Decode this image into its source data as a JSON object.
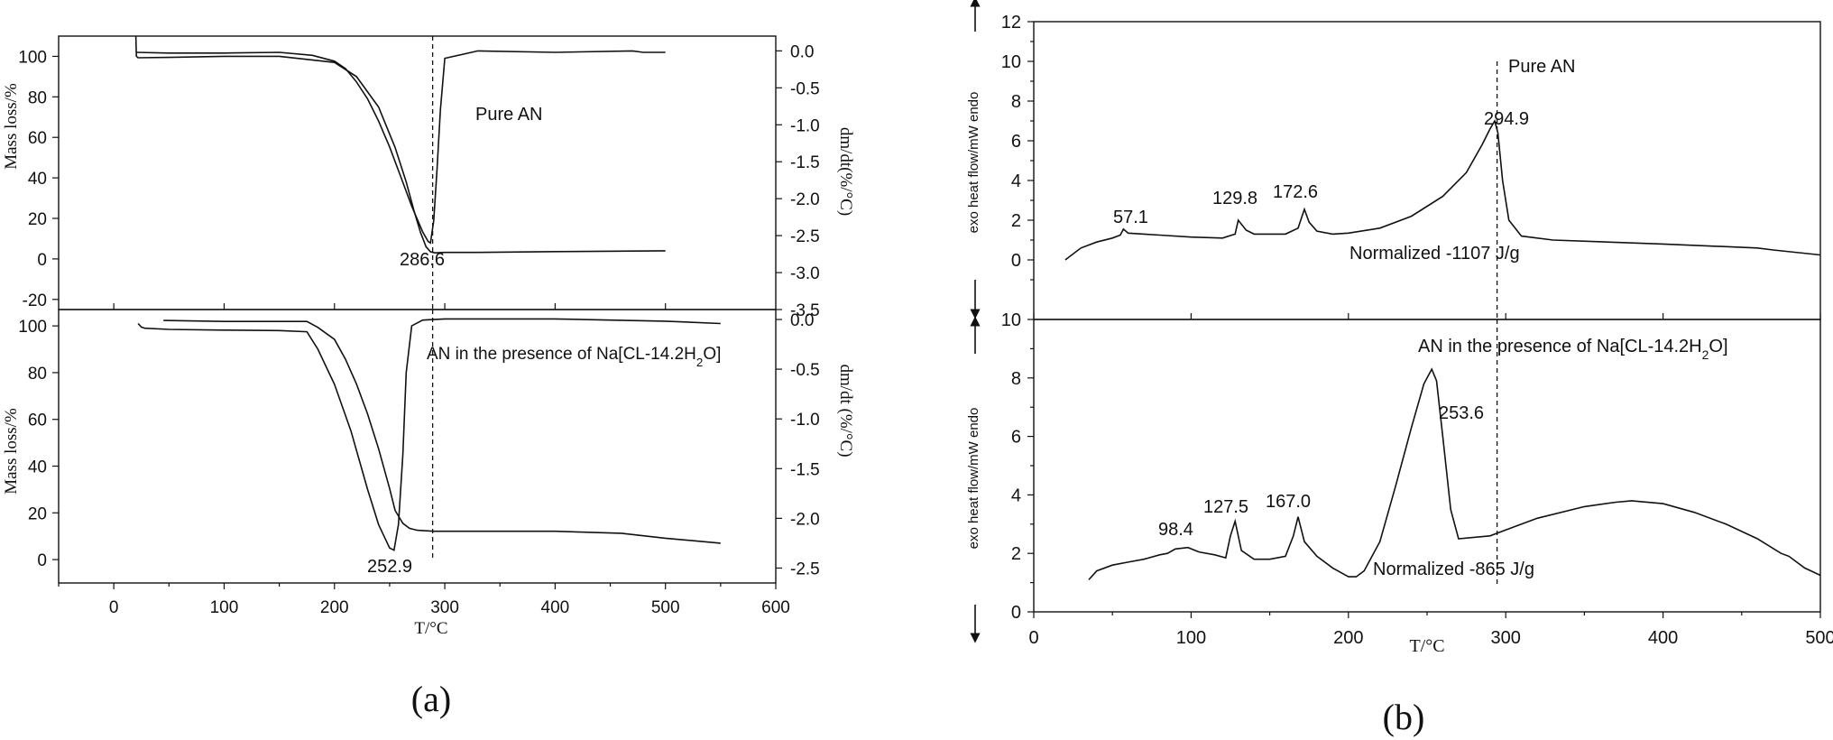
{
  "chart_data": [
    {
      "id": "a_top",
      "type": "line",
      "panel": "(a)",
      "xlim": [
        -50,
        600
      ],
      "ylim_left": [
        -25,
        110
      ],
      "ylim_right": [
        -3.5,
        0.2
      ],
      "yticks_left": [
        -20,
        0,
        20,
        40,
        60,
        80,
        100
      ],
      "yticks_right": [
        0.0,
        -0.5,
        -1.0,
        -1.5,
        -2.0,
        -2.5,
        -3.0,
        -3.5
      ],
      "ylabel_left": "Mass loss/%",
      "ylabel_right": "dm/dt(%/°C)",
      "annotations": [
        {
          "text": "Pure AN",
          "x": 475,
          "y": 75
        },
        {
          "text": "286.6",
          "x": 286.6,
          "y": -3
        }
      ],
      "marker_x": 289,
      "series": [
        {
          "axis": "left",
          "x": [
            20,
            20.5,
            22,
            50,
            100,
            150,
            200,
            220,
            240,
            255,
            265,
            272,
            278,
            283,
            287,
            291,
            300,
            330,
            400,
            500
          ],
          "y": [
            110,
            100,
            99.3,
            99.5,
            100,
            100,
            97,
            90,
            75,
            55,
            38,
            24,
            13,
            6,
            3.5,
            3,
            3.2,
            3.2,
            3.6,
            4
          ]
        },
        {
          "axis": "right",
          "x": [
            20,
            50,
            100,
            150,
            180,
            200,
            210,
            220,
            230,
            240,
            250,
            260,
            270,
            280,
            285,
            287,
            290,
            293,
            296,
            300,
            330,
            400,
            470,
            480,
            500
          ],
          "y": [
            -0.02,
            -0.03,
            -0.03,
            -0.02,
            -0.06,
            -0.14,
            -0.24,
            -0.42,
            -0.65,
            -0.95,
            -1.3,
            -1.7,
            -2.1,
            -2.45,
            -2.58,
            -2.6,
            -2.3,
            -1.6,
            -0.8,
            -0.1,
            0.0,
            -0.02,
            0.0,
            -0.02,
            -0.02
          ]
        }
      ]
    },
    {
      "id": "a_bottom",
      "type": "line",
      "panel": "(a)",
      "xlim": [
        -50,
        600
      ],
      "ylim_left": [
        -10,
        107
      ],
      "ylim_right": [
        -2.65,
        0.1
      ],
      "yticks_left": [
        0,
        20,
        40,
        60,
        80,
        100
      ],
      "yticks_right": [
        0.0,
        -0.5,
        -1.0,
        -1.5,
        -2.0,
        -2.5
      ],
      "ylabel_left": "Mass loss/%",
      "ylabel_right": "dm/dt (%/°C)",
      "xticks": [
        0,
        100,
        200,
        300,
        400,
        500,
        600
      ],
      "xlabel": "T/°C",
      "annotations": [
        {
          "text": "AN in the presence of Na[CL-14.2H2O]",
          "x": 440,
          "y": -0.45
        },
        {
          "text": "252.9",
          "x": 252.9,
          "y": -2.4
        }
      ],
      "marker_x": 289,
      "series": [
        {
          "axis": "left",
          "x": [
            22,
            25,
            28,
            50,
            100,
            150,
            175,
            185,
            200,
            215,
            230,
            240,
            250,
            254,
            258,
            262,
            265,
            270,
            280,
            300,
            350,
            400,
            450,
            500,
            550
          ],
          "y": [
            101,
            99.5,
            99,
            98.5,
            98.2,
            98,
            97.5,
            90,
            75,
            55,
            30,
            15,
            5,
            4,
            15,
            45,
            80,
            100,
            102.5,
            103,
            103,
            103,
            102.5,
            102,
            101
          ]
        },
        {
          "axis": "right",
          "x": [
            45,
            100,
            150,
            175,
            185,
            200,
            210,
            220,
            230,
            240,
            250,
            255,
            262,
            268,
            275,
            290,
            300,
            350,
            400,
            460,
            500,
            550
          ],
          "y": [
            -0.01,
            -0.02,
            -0.02,
            -0.02,
            -0.08,
            -0.2,
            -0.4,
            -0.65,
            -0.95,
            -1.3,
            -1.7,
            -1.92,
            -2.05,
            -2.1,
            -2.12,
            -2.13,
            -2.13,
            -2.13,
            -2.13,
            -2.15,
            -2.2,
            -2.25
          ]
        }
      ]
    },
    {
      "id": "b_top",
      "type": "line",
      "panel": "(b)",
      "xlim": [
        0,
        500
      ],
      "ylim": [
        -3,
        12
      ],
      "yticks": [
        0,
        2,
        4,
        6,
        8,
        10,
        12
      ],
      "ylabel": "exo heat flow/mW endo",
      "annotations": [
        {
          "text": "Pure AN",
          "x": 300,
          "y": 10
        },
        {
          "text": "294.9",
          "x": 294.9,
          "y": 6
        },
        {
          "text": "57.1",
          "x": 57.1,
          "y": 1.7
        },
        {
          "text": "129.8",
          "x": 129.8,
          "y": 2.6
        },
        {
          "text": "172.6",
          "x": 172.6,
          "y": 3.1
        },
        {
          "text": "Normalized -1107 J/g",
          "x": 270,
          "y": 0.4
        }
      ],
      "marker_x": 294.5,
      "series": [
        {
          "x": [
            20,
            30,
            40,
            50,
            55,
            57,
            60,
            70,
            80,
            100,
            120,
            128,
            130,
            135,
            140,
            160,
            168,
            172,
            175,
            180,
            190,
            200,
            220,
            240,
            260,
            275,
            285,
            290,
            293,
            295,
            298,
            302,
            310,
            330,
            400,
            460,
            470,
            500
          ],
          "y": [
            0,
            0.6,
            0.9,
            1.1,
            1.25,
            1.55,
            1.35,
            1.3,
            1.25,
            1.15,
            1.1,
            1.3,
            2.0,
            1.5,
            1.3,
            1.3,
            1.6,
            2.55,
            1.9,
            1.45,
            1.3,
            1.35,
            1.6,
            2.2,
            3.2,
            4.4,
            5.8,
            6.6,
            7.0,
            6.4,
            4.0,
            2.0,
            1.2,
            1.0,
            0.8,
            0.6,
            0.5,
            0.25
          ]
        }
      ]
    },
    {
      "id": "b_bottom",
      "type": "line",
      "panel": "(b)",
      "xlim": [
        0,
        500
      ],
      "ylim": [
        0,
        10
      ],
      "yticks": [
        0,
        2,
        4,
        6,
        8,
        10
      ],
      "xticks": [
        0,
        100,
        200,
        300,
        400,
        500
      ],
      "ylabel": "exo heat flow/mW endo",
      "xlabel": "T/°C",
      "annotations": [
        {
          "text": "AN in the presence  of Na[CL-14.2H2O]",
          "x": 400,
          "y": 9.2
        },
        {
          "text": "253.6",
          "x": 253.6,
          "y": 6.8
        },
        {
          "text": "98.4",
          "x": 98.4,
          "y": 2.6
        },
        {
          "text": "127.5",
          "x": 127.5,
          "y": 3.5
        },
        {
          "text": "167.0",
          "x": 167.0,
          "y": 3.6
        },
        {
          "text": "Normalized -865 J/g",
          "x": 255,
          "y": 1.4
        }
      ],
      "marker_x": 294.5,
      "series": [
        {
          "x": [
            35,
            40,
            50,
            60,
            70,
            80,
            85,
            90,
            98,
            105,
            115,
            122,
            125,
            128,
            132,
            140,
            150,
            160,
            165,
            168,
            172,
            180,
            190,
            200,
            205,
            210,
            220,
            230,
            240,
            248,
            253,
            256,
            260,
            265,
            270,
            290,
            300,
            320,
            350,
            370,
            380,
            400,
            420,
            440,
            460,
            475,
            480,
            490,
            500
          ],
          "y": [
            1.1,
            1.4,
            1.6,
            1.7,
            1.8,
            1.95,
            2.0,
            2.15,
            2.2,
            2.05,
            1.95,
            1.85,
            2.6,
            3.1,
            2.1,
            1.8,
            1.8,
            1.9,
            2.6,
            3.25,
            2.4,
            1.9,
            1.5,
            1.2,
            1.2,
            1.4,
            2.4,
            4.3,
            6.3,
            7.8,
            8.3,
            7.9,
            6.0,
            3.5,
            2.5,
            2.6,
            2.8,
            3.2,
            3.6,
            3.75,
            3.8,
            3.7,
            3.4,
            3.0,
            2.5,
            2.0,
            1.9,
            1.5,
            1.25
          ]
        }
      ]
    }
  ],
  "panel_labels": {
    "a": "(a)",
    "b": "(b)"
  },
  "axis_units": {
    "a_bottom_x": "T/°C",
    "b_bottom_x": "T/°C"
  }
}
